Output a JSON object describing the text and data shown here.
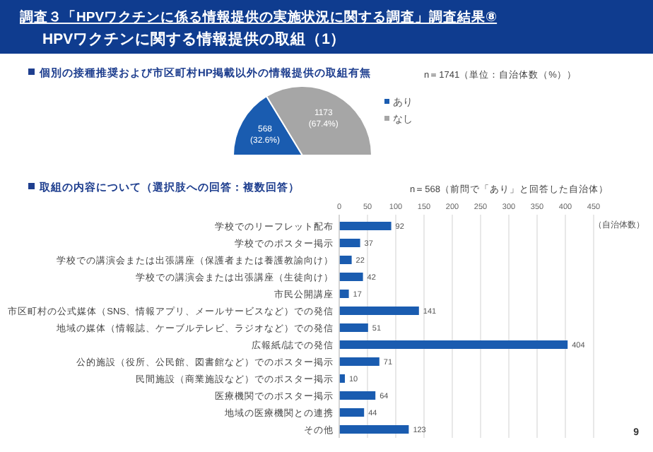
{
  "chart_data": [
    {
      "type": "pie",
      "title": "個別の接種推奨および市区町村HP掲載以外の情報提供の取組有無",
      "subtitle": "n＝1741（単位：自治体数（%））",
      "annotations": [
        "調査３「HPVワクチンに係る情報提供の実施状況に関する調査」調査結果⑧",
        "HPVワクチンに関する情報提供の取組（1）"
      ],
      "categories": [
        "あり",
        "なし"
      ],
      "values": [
        568,
        1173
      ],
      "colors": [
        "#1a5cb0",
        "#a6a6a6"
      ],
      "value_labels": [
        "568\n(32.6%)",
        "1173\n(67.4%)"
      ],
      "legend": "right"
    },
    {
      "type": "bar",
      "orientation": "horizontal",
      "title": "取組の内容について（選択肢への回答：複数回答）",
      "subtitle": "n＝568（前問で「あり」と回答した自治体）",
      "xlabel": "（自治体数）",
      "annotations": [
        "9"
      ],
      "categories": [
        "学校でのリーフレット配布",
        "学校でのポスター掲示",
        "学校での講演会または出張講座（保護者または養護教諭向け）",
        "学校での講演会または出張講座（生徒向け）",
        "市民公開講座",
        "市区町村の公式媒体（SNS、情報アプリ、メールサービスなど）での発信",
        "地域の媒体（情報誌、ケーブルテレビ、ラジオなど）での発信",
        "広報紙/誌での発信",
        "公的施設（役所、公民館、図書館など）でのポスター掲示",
        "民間施設（商業施設など）でのポスター掲示",
        "医療機関でのポスター掲示",
        "地域の医療機関との連携",
        "その他"
      ],
      "values": [
        92,
        37,
        22,
        42,
        17,
        141,
        51,
        404,
        71,
        10,
        64,
        44,
        123
      ],
      "color": "#1a5cb0",
      "xlim": [
        0,
        450
      ],
      "xticks": [
        0,
        50,
        100,
        150,
        200,
        250,
        300,
        350,
        400,
        450
      ],
      "grid": "x",
      "data_labels": true
    }
  ]
}
